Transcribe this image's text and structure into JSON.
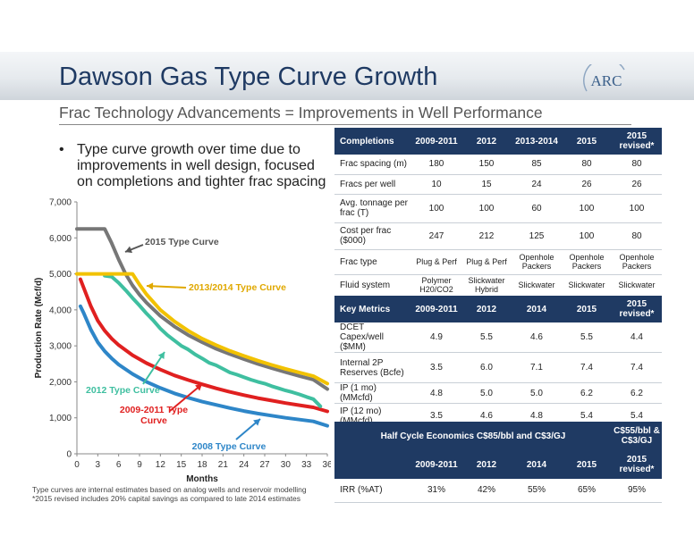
{
  "slide": {
    "title": "Dawson Gas Type Curve Growth",
    "subtitle": "Frac Technology Advancements = Improvements in Well Performance",
    "logo_text": "ARC",
    "bullet": "Type curve growth over time due to improvements in well design, focused on completions and tighter frac spacing",
    "footnote_1": "Type curves are internal estimates based on analog wells and reservoir modelling",
    "footnote_2": "*2015 revised includes 20% capital savings as compared to late 2014 estimates"
  },
  "completions_table": {
    "header": [
      "Completions",
      "2009-2011",
      "2012",
      "2013-2014",
      "2015",
      "2015 revised*"
    ],
    "rows": [
      [
        "Frac spacing (m)",
        "180",
        "150",
        "85",
        "80",
        "80"
      ],
      [
        "Fracs per well",
        "10",
        "15",
        "24",
        "26",
        "26"
      ],
      [
        "Avg. tonnage per frac (T)",
        "100",
        "100",
        "60",
        "100",
        "100"
      ],
      [
        "Cost per frac ($000)",
        "247",
        "212",
        "125",
        "100",
        "80"
      ],
      [
        "Frac type",
        "Plug & Perf",
        "Plug & Perf",
        "Openhole Packers",
        "Openhole Packers",
        "Openhole Packers"
      ],
      [
        "Fluid system",
        "Polymer H20/CO2",
        "Slickwater Hybrid",
        "Slickwater",
        "Slickwater",
        "Slickwater"
      ]
    ]
  },
  "metrics_table": {
    "header": [
      "Key Metrics",
      "2009-2011",
      "2012",
      "2014",
      "2015",
      "2015 revised*"
    ],
    "rows": [
      [
        "DCET Capex/well ($MM)",
        "4.9",
        "5.5",
        "4.6",
        "5.5",
        "4.4"
      ],
      [
        "Internal 2P Reserves (Bcfe)",
        "3.5",
        "6.0",
        "7.1",
        "7.4",
        "7.4"
      ],
      [
        "IP (1 mo) (MMcfd)",
        "4.8",
        "5.0",
        "5.0",
        "6.2",
        "6.2"
      ],
      [
        "IP (12 mo) (MMcfd)",
        "3.5",
        "4.6",
        "4.8",
        "5.4",
        "5.4"
      ]
    ]
  },
  "economics_table": {
    "title": "Half Cycle Economics C$85/bbl and C$3/GJ",
    "title_right": "C$55/bbl & C$3/GJ",
    "header": [
      "",
      "2009-2011",
      "2012",
      "2014",
      "2015",
      "2015 revised*"
    ],
    "row": [
      "IRR (%AT)",
      "31%",
      "42%",
      "55%",
      "65%",
      "95%"
    ]
  },
  "chart_data": {
    "type": "line",
    "xlabel": "Months",
    "ylabel": "Production Rate (Mcf/d)",
    "xlim": [
      0,
      36
    ],
    "ylim": [
      0,
      7000
    ],
    "x_ticks": [
      "0",
      "3",
      "6",
      "9",
      "12",
      "15",
      "18",
      "21",
      "24",
      "27",
      "30",
      "33",
      "36"
    ],
    "y_ticks": [
      "0",
      "1,000",
      "2,000",
      "3,000",
      "4,000",
      "5,000",
      "6,000",
      "7,000"
    ],
    "grid": false,
    "series": [
      {
        "name": "2015 Type Curve",
        "color": "#777777",
        "x": [
          0,
          1,
          2,
          3,
          4,
          5,
          6,
          7,
          8,
          9,
          10,
          12,
          14,
          16,
          18,
          20,
          22,
          24,
          26,
          28,
          30,
          32,
          34,
          36
        ],
        "y": [
          6250,
          6250,
          6250,
          6250,
          6250,
          5850,
          5400,
          5000,
          4680,
          4420,
          4200,
          3830,
          3540,
          3300,
          3100,
          2920,
          2770,
          2630,
          2500,
          2380,
          2270,
          2160,
          2060,
          1800
        ]
      },
      {
        "name": "2013/2014 Type Curve",
        "color": "#f2c200",
        "x": [
          0,
          1,
          2,
          3,
          4,
          5,
          6,
          7,
          8,
          9,
          10,
          12,
          14,
          16,
          18,
          20,
          22,
          24,
          26,
          28,
          30,
          32,
          34,
          36
        ],
        "y": [
          5000,
          5000,
          5000,
          5000,
          5000,
          5000,
          5000,
          5000,
          5000,
          4700,
          4430,
          4000,
          3680,
          3420,
          3200,
          3020,
          2860,
          2720,
          2590,
          2470,
          2360,
          2260,
          2160,
          1950
        ]
      },
      {
        "name": "2012 Type Curve",
        "color": "#3fbfa0",
        "x": [
          4,
          5,
          6,
          7,
          8,
          9,
          10,
          11,
          12,
          13,
          14,
          15,
          16,
          17,
          18,
          19,
          20,
          21,
          22,
          23,
          24,
          25,
          26,
          27,
          28,
          29,
          30,
          31,
          32,
          33,
          34,
          35
        ],
        "y": [
          4950,
          4920,
          4750,
          4550,
          4330,
          4120,
          3900,
          3700,
          3480,
          3300,
          3150,
          3000,
          2900,
          2760,
          2650,
          2530,
          2460,
          2360,
          2260,
          2200,
          2130,
          2060,
          2000,
          1950,
          1880,
          1820,
          1760,
          1710,
          1650,
          1580,
          1520,
          1320
        ]
      },
      {
        "name": "2009-2011 Type Curve",
        "color": "#e02020",
        "x": [
          0.5,
          1,
          2,
          3,
          4,
          5,
          6,
          8,
          10,
          12,
          14,
          16,
          18,
          20,
          22,
          24,
          26,
          28,
          30,
          32,
          34,
          36
        ],
        "y": [
          4850,
          4600,
          4100,
          3700,
          3420,
          3200,
          3020,
          2740,
          2520,
          2340,
          2180,
          2050,
          1930,
          1820,
          1720,
          1630,
          1550,
          1480,
          1410,
          1350,
          1290,
          1180
        ]
      },
      {
        "name": "2008 Type Curve",
        "color": "#2e86c8",
        "x": [
          0.5,
          1,
          2,
          3,
          4,
          5,
          6,
          8,
          10,
          12,
          14,
          16,
          18,
          20,
          22,
          24,
          26,
          28,
          30,
          32,
          34,
          36
        ],
        "y": [
          4100,
          3900,
          3450,
          3100,
          2850,
          2650,
          2480,
          2220,
          2000,
          1830,
          1680,
          1560,
          1450,
          1360,
          1270,
          1190,
          1120,
          1060,
          1000,
          950,
          900,
          780
        ]
      }
    ],
    "annotations": [
      {
        "text": "2015 Type Curve",
        "color": "#555555",
        "series": 0
      },
      {
        "text": "2013/2014 Type Curve",
        "color": "#e0a800",
        "series": 1
      },
      {
        "text": "2012 Type Curve",
        "color": "#3fbfa0",
        "series": 2
      },
      {
        "text": "2009-2011 Type Curve",
        "color": "#e02020",
        "series": 3
      },
      {
        "text": "2008 Type Curve",
        "color": "#2e86c8",
        "series": 4
      }
    ]
  }
}
